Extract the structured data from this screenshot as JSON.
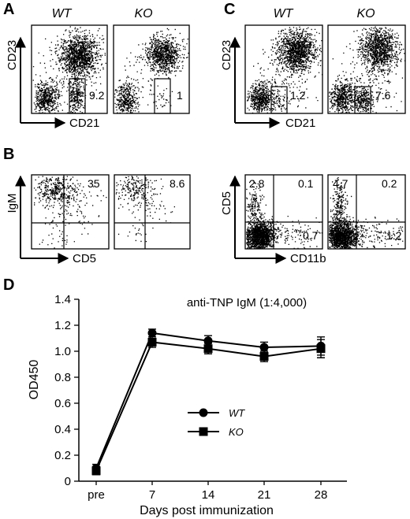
{
  "panels": {
    "A": {
      "letter": "A",
      "columns": [
        "WT",
        "KO"
      ],
      "xlabel": "CD21",
      "ylabel": "CD23",
      "gate_values": [
        "9.2",
        "1"
      ]
    },
    "B": {
      "letter": "B",
      "xlabel": "CD5",
      "ylabel": "IgM",
      "quadrant_values": [
        "35",
        "8.6"
      ]
    },
    "C": {
      "letter": "C",
      "columns": [
        "WT",
        "KO"
      ],
      "xlabel": "CD21",
      "ylabel": "CD23",
      "gate_values": [
        "1.2",
        "7.6"
      ]
    },
    "C_lower": {
      "xlabel": "CD11b",
      "ylabel": "CD5",
      "wt_quadrants": {
        "upper_left": "2.8",
        "upper_right": "0.1",
        "lower_right": "0.7"
      },
      "ko_quadrants": {
        "upper_left": "4.7",
        "upper_right": "0.2",
        "lower_right": "1.2"
      }
    },
    "D": {
      "letter": "D"
    }
  },
  "chart_data": {
    "type": "line",
    "title": "anti-TNP IgM (1:4,000)",
    "xlabel": "Days post immunization",
    "ylabel": "OD450",
    "categories": [
      "pre",
      "7",
      "14",
      "21",
      "28"
    ],
    "ylim": [
      0,
      1.4
    ],
    "yticks": [
      "0",
      "0.2",
      "0.4",
      "0.6",
      "0.8",
      "1.0",
      "1.2",
      "1.4"
    ],
    "legend_placement": "center",
    "series": [
      {
        "name": "WT",
        "marker": "circle",
        "values": [
          0.1,
          1.14,
          1.08,
          1.03,
          1.04
        ],
        "errors": [
          0.03,
          0.03,
          0.04,
          0.04,
          0.07
        ]
      },
      {
        "name": "KO",
        "marker": "square",
        "values": [
          0.08,
          1.07,
          1.02,
          0.96,
          1.02
        ],
        "errors": [
          0.03,
          0.04,
          0.04,
          0.04,
          0.07
        ]
      }
    ]
  }
}
